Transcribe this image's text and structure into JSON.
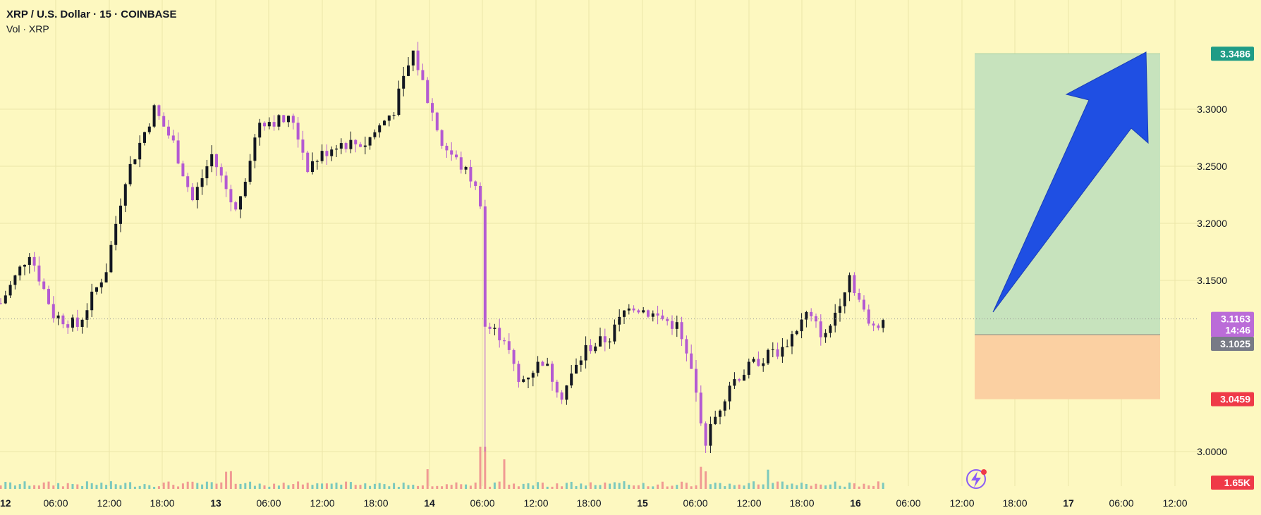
{
  "legend": {
    "title": "XRP / U.S. Dollar · 15 · COINBASE",
    "subtitle": "Vol · XRP"
  },
  "colors": {
    "background": "#fdf8c0",
    "candle_up": "#131722",
    "candle_down": "#b45ad2",
    "profit_zone": "#c7e3bd",
    "loss_zone": "#fbd0a2",
    "arrow": "#1f4fe3",
    "vol_up": "#7cc9bd",
    "vol_down": "#f09a93",
    "label_target": "#1f9c86",
    "label_price": "#bb6cd8",
    "label_entry": "#787b86",
    "label_stop": "#ef3a48"
  },
  "chart_data": {
    "type": "candlestick",
    "interval": "15",
    "ylim": [
      2.98,
      3.36
    ],
    "y_ticks": [
      "3.3000",
      "3.2500",
      "3.2000",
      "3.1500",
      "3.0000"
    ],
    "x_ticks": [
      "12",
      "06:00",
      "12:00",
      "18:00",
      "13",
      "06:00",
      "12:00",
      "18:00",
      "14",
      "06:00",
      "12:00",
      "18:00",
      "15",
      "06:00",
      "12:00",
      "18:00",
      "16",
      "06:00",
      "12:00",
      "18:00",
      "17",
      "06:00",
      "12:00"
    ],
    "price_path": [
      {
        "t": 0,
        "p": 3.13
      },
      {
        "t": 6,
        "p": 3.175
      },
      {
        "t": 11,
        "p": 3.12
      },
      {
        "t": 16,
        "p": 3.11
      },
      {
        "t": 22,
        "p": 3.16
      },
      {
        "t": 26,
        "p": 3.24
      },
      {
        "t": 32,
        "p": 3.3
      },
      {
        "t": 36,
        "p": 3.27
      },
      {
        "t": 40,
        "p": 3.22
      },
      {
        "t": 44,
        "p": 3.26
      },
      {
        "t": 49,
        "p": 3.21
      },
      {
        "t": 54,
        "p": 3.29
      },
      {
        "t": 61,
        "p": 3.29
      },
      {
        "t": 64,
        "p": 3.25
      },
      {
        "t": 70,
        "p": 3.27
      },
      {
        "t": 76,
        "p": 3.27
      },
      {
        "t": 82,
        "p": 3.3
      },
      {
        "t": 86,
        "p": 3.35
      },
      {
        "t": 92,
        "p": 3.27
      },
      {
        "t": 98,
        "p": 3.24
      },
      {
        "t": 100,
        "p": 3.22
      },
      {
        "t": 101,
        "p": 3.11
      },
      {
        "t": 105,
        "p": 3.1
      },
      {
        "t": 108,
        "p": 3.06
      },
      {
        "t": 113,
        "p": 3.08
      },
      {
        "t": 117,
        "p": 3.05
      },
      {
        "t": 122,
        "p": 3.09
      },
      {
        "t": 127,
        "p": 3.1
      },
      {
        "t": 131,
        "p": 3.13
      },
      {
        "t": 136,
        "p": 3.12
      },
      {
        "t": 141,
        "p": 3.11
      },
      {
        "t": 144,
        "p": 3.07
      },
      {
        "t": 147,
        "p": 3.01
      },
      {
        "t": 152,
        "p": 3.06
      },
      {
        "t": 158,
        "p": 3.08
      },
      {
        "t": 163,
        "p": 3.09
      },
      {
        "t": 168,
        "p": 3.12
      },
      {
        "t": 172,
        "p": 3.1
      },
      {
        "t": 177,
        "p": 3.155
      },
      {
        "t": 181,
        "p": 3.11
      },
      {
        "t": 184,
        "p": 3.116
      }
    ],
    "last_bar_index": 184,
    "position": {
      "type": "long",
      "entry": 3.1025,
      "target": 3.3486,
      "stop": 3.0459
    },
    "price_labels": {
      "target": "3.3486",
      "current": "3.1163",
      "countdown": "14:46",
      "entry": "3.1025",
      "stop": "3.0459",
      "volume": "1.65K"
    }
  }
}
